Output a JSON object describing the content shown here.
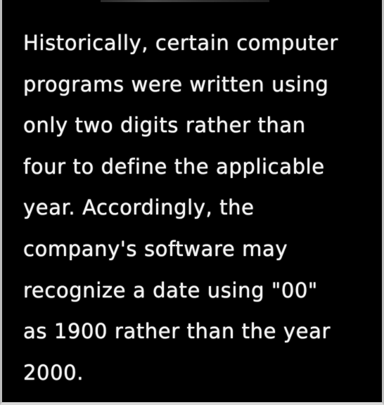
{
  "document": {
    "lines": [
      "Historically, certain computer",
      "programs were written using",
      "only two digits rather than",
      "four to define the applicable",
      "year. Accordingly, the",
      "company's software may",
      "recognize a date using \"00\"",
      "as 1900 rather than the year",
      "2000."
    ]
  }
}
